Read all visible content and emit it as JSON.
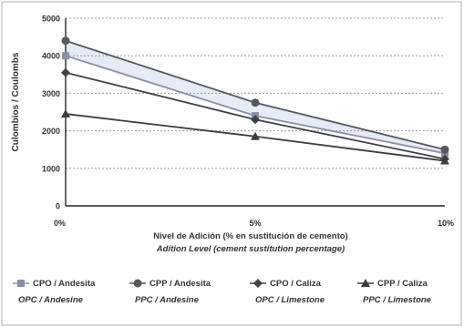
{
  "chart_data": {
    "type": "line",
    "x": [
      0,
      5,
      10
    ],
    "x_tick_labels": [
      "0%",
      "5%",
      "10%"
    ],
    "xlabel": "Nivel de Adición (% en sustitución de cemento)",
    "xlabel_en": "Adition Level (cement sustitution percentage)",
    "ylabel": "Culombios / Coulombs",
    "ylim": [
      0,
      5000
    ],
    "y_ticks": [
      0,
      1000,
      2000,
      3000,
      4000,
      5000
    ],
    "y_tick_labels": [
      "0",
      "1000",
      "2000",
      "3000",
      "4000",
      "5000"
    ],
    "grid": "horizontal dotted",
    "legend_position": "bottom",
    "series": [
      {
        "name": "CPO / Andesita",
        "name_en": "OPC / Andesine",
        "marker": "square",
        "color": "#8a8fa5",
        "values": [
          4000,
          2400,
          1400
        ]
      },
      {
        "name": "CPP / Andesita",
        "name_en": "PPC / Andesine",
        "marker": "circle",
        "color": "#55585c",
        "values": [
          4400,
          2750,
          1500
        ]
      },
      {
        "name": "CPO / Caliza",
        "name_en": "OPC / Limestone",
        "marker": "diamond",
        "color": "#40434a",
        "values": [
          3550,
          2300,
          1250
        ]
      },
      {
        "name": "CPP / Caliza",
        "name_en": "PPC / Limestone",
        "marker": "triangle",
        "color": "#3a3d42",
        "values": [
          2450,
          1850,
          1200
        ]
      }
    ]
  },
  "colors": {
    "frame": "#bdbdbd",
    "band_fill": "#e6ebf6",
    "grid": "#9a9a9a"
  }
}
